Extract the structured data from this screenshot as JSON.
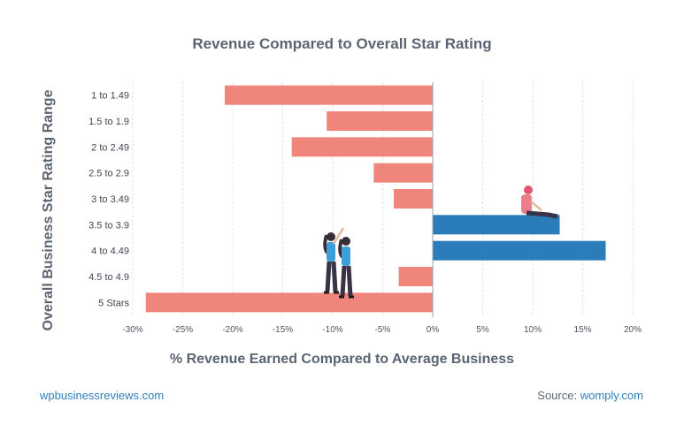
{
  "chart_data": {
    "type": "bar",
    "orientation": "horizontal",
    "title": "Revenue Compared to Overall Star Rating",
    "xlabel": "% Revenue Earned Compared to Average Business",
    "ylabel": "Overall Business Star Rating Range",
    "categories": [
      "1 to 1.49",
      "1.5 to 1.9",
      "2 to 2.49",
      "2.5 to 2.9",
      "3 to 3.49",
      "3.5 to 3.9",
      "4 to 4.49",
      "4.5 to 4.9",
      "5 Stars"
    ],
    "values": [
      -20.8,
      -10.6,
      -14.1,
      -5.9,
      -3.9,
      12.7,
      17.3,
      -3.4,
      -28.7
    ],
    "xlim": [
      -30,
      20
    ],
    "xticks": [
      "-30%",
      "-25%",
      "-20%",
      "-15%",
      "-10%",
      "-5%",
      "0%",
      "5%",
      "10%",
      "15%",
      "20%"
    ],
    "grid": true,
    "colors": {
      "negative": "#f0857c",
      "positive": "#2a7db8",
      "grid": "#d5ede8"
    }
  },
  "footer": {
    "site": "wpbusinessreviews.com",
    "source_label": "Source:",
    "source_name": "womply.com"
  }
}
